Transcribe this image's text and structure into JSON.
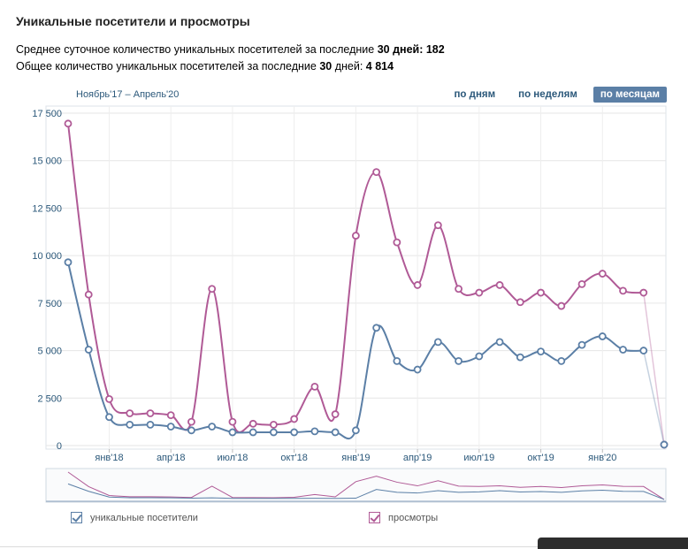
{
  "title": "Уникальные посетители и просмотры",
  "stats": {
    "line1_prefix": "Среднее суточное количество уникальных посетителей за последние ",
    "line1_days": "30 дней:",
    "line1_value": "182",
    "line2_prefix": "Общее количество уникальных посетителей за последние ",
    "line2_days": "30",
    "line2_suffix": " дней: ",
    "line2_value": "4 814"
  },
  "range_label": "Ноябрь'17 – Апрель'20",
  "periods": [
    {
      "label": "по дням",
      "active": false
    },
    {
      "label": "по неделям",
      "active": false
    },
    {
      "label": "по месяцам",
      "active": true
    }
  ],
  "legend": {
    "unique": "уникальные посетители",
    "views": "просмотры"
  },
  "colors": {
    "unique": "#5b7fa6",
    "views": "#b05a96",
    "grid": "#e6e6e6",
    "axis_text": "#2b587a"
  },
  "chart_data": {
    "type": "line",
    "grid": true,
    "ylim": [
      0,
      17500
    ],
    "y_ticks": [
      "0",
      "2 500",
      "5 000",
      "7 500",
      "10 000",
      "12 500",
      "15 000",
      "17 500"
    ],
    "x_ticks": [
      {
        "label": "янв'18",
        "t": 2
      },
      {
        "label": "апр'18",
        "t": 5
      },
      {
        "label": "июл'18",
        "t": 8
      },
      {
        "label": "окт'18",
        "t": 11
      },
      {
        "label": "янв'19",
        "t": 14
      },
      {
        "label": "апр'19",
        "t": 17
      },
      {
        "label": "июл'19",
        "t": 20
      },
      {
        "label": "окт'19",
        "t": 23
      },
      {
        "label": "янв'20",
        "t": 26
      }
    ],
    "series": [
      {
        "name": "уникальные посетители",
        "key": "unique",
        "values": [
          9650,
          5050,
          1500,
          1100,
          1100,
          1000,
          800,
          1000,
          700,
          700,
          700,
          700,
          750,
          700,
          800,
          6200,
          4450,
          4000,
          5450,
          4450,
          4700,
          5450,
          4650,
          4950,
          4450,
          5300,
          5750,
          5050,
          5000,
          50
        ]
      },
      {
        "name": "просмотры",
        "key": "views",
        "values": [
          16950,
          7950,
          2450,
          1700,
          1700,
          1600,
          1250,
          8250,
          1250,
          1150,
          1100,
          1400,
          3100,
          1650,
          11050,
          14400,
          10700,
          8450,
          11600,
          8250,
          8050,
          8450,
          7550,
          8050,
          7350,
          8500,
          9050,
          8150,
          8050,
          50
        ]
      }
    ]
  }
}
